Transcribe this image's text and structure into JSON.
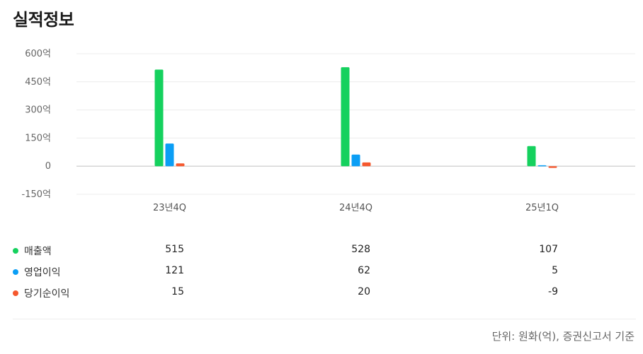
{
  "title": "실적정보",
  "chart_data": {
    "type": "bar",
    "categories": [
      "23년4Q",
      "24년4Q",
      "25년1Q"
    ],
    "y_ticks": [
      "600억",
      "450억",
      "300억",
      "150억",
      "0",
      "-150억"
    ],
    "y_tick_values": [
      600,
      450,
      300,
      150,
      0,
      -150
    ],
    "ylim": [
      -150,
      600
    ],
    "grid": true,
    "series": [
      {
        "name": "매출액",
        "color": "#15d15e",
        "values": [
          515,
          528,
          107
        ]
      },
      {
        "name": "영업이익",
        "color": "#0b9ef5",
        "values": [
          121,
          62,
          5
        ]
      },
      {
        "name": "당기순이익",
        "color": "#f5582e",
        "values": [
          15,
          20,
          -9
        ]
      }
    ]
  },
  "table": {
    "rows": [
      {
        "label": "매출액",
        "values": [
          "515",
          "528",
          "107"
        ]
      },
      {
        "label": "영업이익",
        "values": [
          "121",
          "62",
          "5"
        ]
      },
      {
        "label": "당기순이익",
        "values": [
          "15",
          "20",
          "-9"
        ]
      }
    ]
  },
  "unit_note": "단위: 원화(억), 증권신고서 기준"
}
